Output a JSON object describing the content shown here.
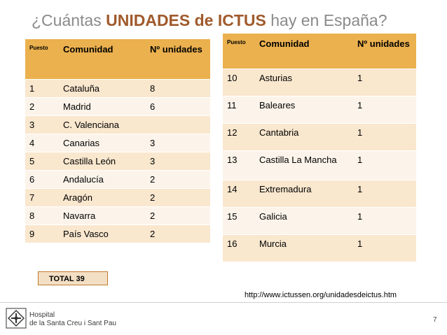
{
  "title": {
    "prefix": "¿Cuántas ",
    "highlight": "UNIDADES de ICTUS",
    "suffix": " hay en España?"
  },
  "table_left": {
    "headers": [
      "Puesto",
      "Comunidad",
      "Nº unidades"
    ],
    "rows": [
      [
        "1",
        "Cataluña",
        "8"
      ],
      [
        "2",
        "Madrid",
        "6"
      ],
      [
        "3",
        "C. Valenciana",
        ""
      ],
      [
        "4",
        "Canarias",
        "3"
      ],
      [
        "5",
        "Castilla León",
        "3"
      ],
      [
        "6",
        "Andalucía",
        "2"
      ],
      [
        "7",
        "Aragón",
        "2"
      ],
      [
        "8",
        "Navarra",
        "2"
      ],
      [
        "9",
        "País Vasco",
        "2"
      ]
    ]
  },
  "table_right": {
    "headers": [
      "Puesto",
      "Comunidad",
      "Nº unidades"
    ],
    "rows": [
      [
        "10",
        "Asturias",
        "1"
      ],
      [
        "11",
        "Baleares",
        "1"
      ],
      [
        "12",
        "Cantabria",
        "1"
      ],
      [
        "13",
        "Castilla La Mancha",
        "1"
      ],
      [
        "14",
        "Extremadura",
        "1"
      ],
      [
        "15",
        "Galicia",
        "1"
      ],
      [
        "16",
        "Murcia",
        "1"
      ]
    ]
  },
  "total": "TOTAL  39",
  "source_url": "http://www.ictussen.org/unidadesdeictus.htm",
  "footer": {
    "hospital_line1": "Hospital",
    "hospital_line2": "de la Santa Creu i Sant Pau",
    "page_number": "7",
    "logo_icon": "hospital-emblem-icon"
  },
  "colors": {
    "header_fill": "#ebb14e",
    "row_odd": "#f9e7ce",
    "row_even": "#fcf4ea",
    "title_highlight": "#a05a2c",
    "title_gray": "#8a8a8a"
  }
}
